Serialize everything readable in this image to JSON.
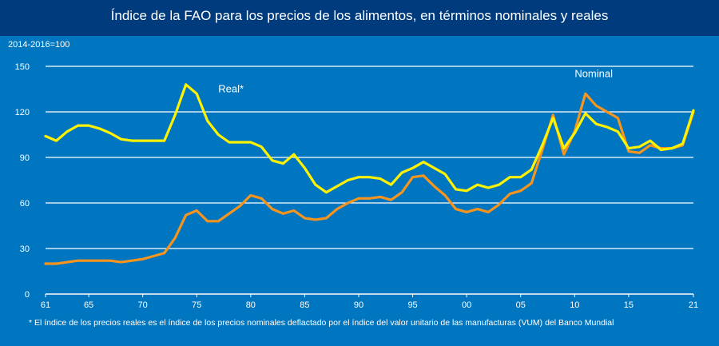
{
  "chart_data": {
    "type": "line",
    "title": "Índice de la FAO para los precios de los alimentos, en términos nominales y reales",
    "ylabel": "2014-2016=100",
    "ylim": [
      0,
      150
    ],
    "yticks": [
      0,
      30,
      60,
      90,
      120,
      150
    ],
    "xlim": [
      1961,
      2021
    ],
    "xticks": [
      1961,
      1965,
      1970,
      1975,
      1980,
      1985,
      1990,
      1995,
      2000,
      2005,
      2010,
      2015,
      2021
    ],
    "xtick_labels": [
      "61",
      "65",
      "70",
      "75",
      "80",
      "85",
      "90",
      "95",
      "00",
      "05",
      "10",
      "15",
      "21"
    ],
    "grid": true,
    "x": [
      1961,
      1962,
      1963,
      1964,
      1965,
      1966,
      1967,
      1968,
      1969,
      1970,
      1971,
      1972,
      1973,
      1974,
      1975,
      1976,
      1977,
      1978,
      1979,
      1980,
      1981,
      1982,
      1983,
      1984,
      1985,
      1986,
      1987,
      1988,
      1989,
      1990,
      1991,
      1992,
      1993,
      1994,
      1995,
      1996,
      1997,
      1998,
      1999,
      2000,
      2001,
      2002,
      2003,
      2004,
      2005,
      2006,
      2007,
      2008,
      2009,
      2010,
      2011,
      2012,
      2013,
      2014,
      2015,
      2016,
      2017,
      2018,
      2019,
      2020,
      2021
    ],
    "series": [
      {
        "name": "Real*",
        "color": "#fff200",
        "values": [
          104,
          101,
          107,
          111,
          111,
          109,
          106,
          102,
          101,
          101,
          101,
          101,
          118,
          138,
          132,
          114,
          105,
          100,
          100,
          100,
          97,
          88,
          86,
          92,
          83,
          72,
          67,
          71,
          75,
          77,
          77,
          76,
          72,
          80,
          83,
          87,
          83,
          79,
          69,
          68,
          72,
          70,
          72,
          77,
          77,
          82,
          98,
          116,
          96,
          106,
          119,
          112,
          110,
          107,
          96,
          97,
          101,
          95,
          96,
          99,
          121
        ]
      },
      {
        "name": "Nominal",
        "color": "#f7941d",
        "values": [
          20,
          20,
          21,
          22,
          22,
          22,
          22,
          21,
          22,
          23,
          25,
          27,
          37,
          52,
          55,
          48,
          48,
          53,
          58,
          65,
          63,
          56,
          53,
          55,
          50,
          49,
          50,
          56,
          60,
          63,
          63,
          64,
          62,
          67,
          77,
          78,
          71,
          65,
          56,
          54,
          56,
          54,
          59,
          66,
          68,
          73,
          95,
          118,
          92,
          107,
          132,
          124,
          120,
          116,
          94,
          93,
          98,
          96,
          96,
          98,
          120
        ]
      }
    ],
    "annotations": [
      {
        "text": "Real*",
        "x": 1977,
        "y": 133,
        "series": "Real*"
      },
      {
        "text": "Nominal",
        "x": 2010,
        "y": 143,
        "series": "Nominal"
      }
    ]
  },
  "footnote": "* El índice de los precios reales es el índice de los precios nominales deflactado por el índice del valor unitario de las manufacturas (VUM) del Banco Mundial"
}
